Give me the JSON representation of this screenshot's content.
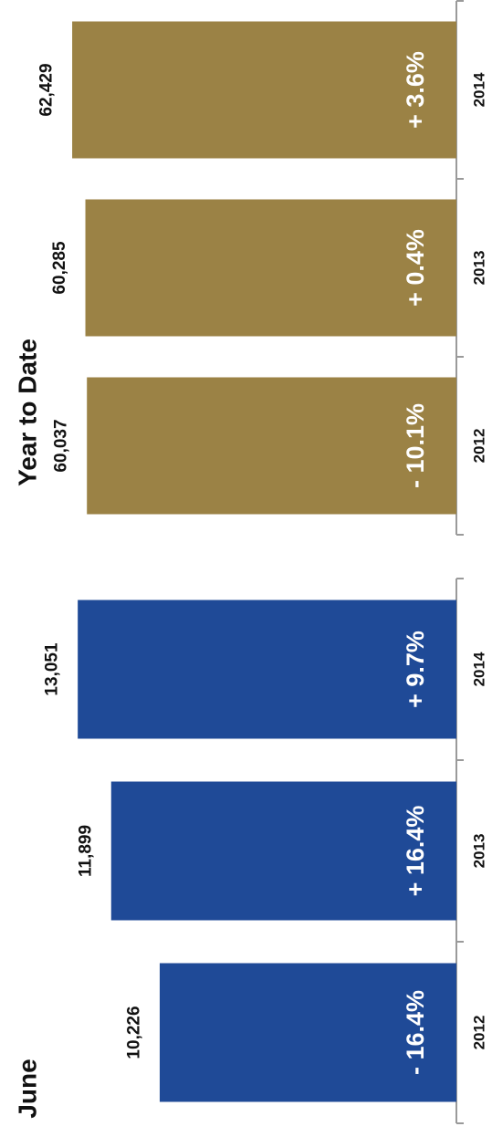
{
  "chart_data": [
    {
      "type": "bar",
      "title": "June",
      "categories": [
        "2012",
        "2013",
        "2014"
      ],
      "values": [
        10226,
        11899,
        13051
      ],
      "value_labels": [
        "10,226",
        "11,899",
        "13,051"
      ],
      "changes": [
        "- 16.4%",
        "+ 16.4%",
        "+ 9.7%"
      ],
      "color": "#1f4a97",
      "ylim": [
        0,
        14000
      ],
      "grid": false,
      "legend": "none"
    },
    {
      "type": "bar",
      "title": "Year to Date",
      "categories": [
        "2012",
        "2013",
        "2014"
      ],
      "values": [
        60037,
        60285,
        62429
      ],
      "value_labels": [
        "60,037",
        "60,285",
        "62,429"
      ],
      "changes": [
        "- 10.1%",
        "+ 0.4%",
        "+ 3.6%"
      ],
      "color": "#9b8245",
      "ylim": [
        0,
        66000
      ],
      "grid": false,
      "legend": "none"
    }
  ]
}
